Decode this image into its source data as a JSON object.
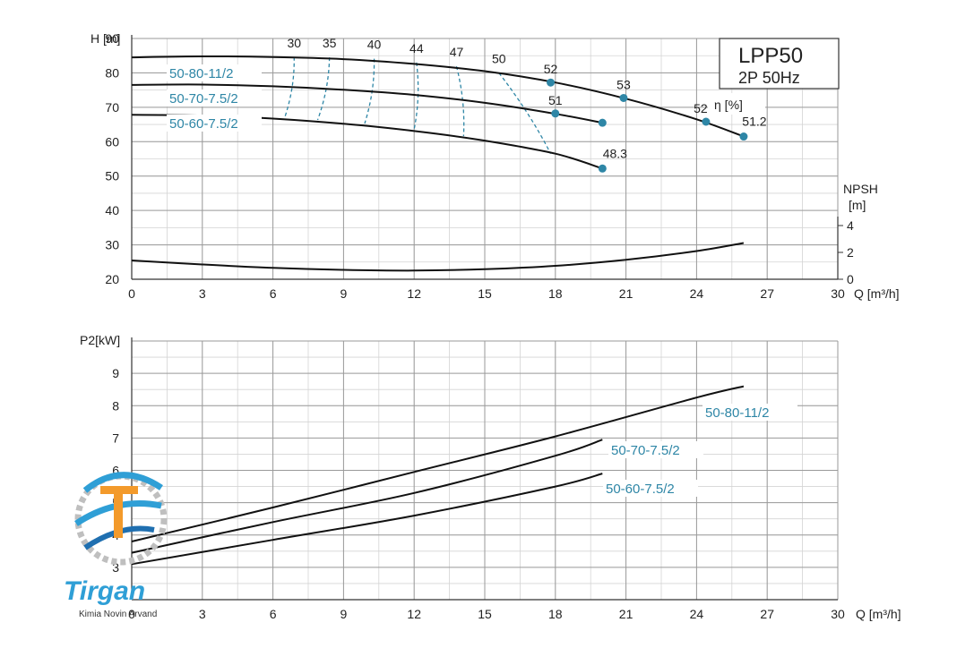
{
  "title_box": {
    "model": "LPP50",
    "sub": "2P  50Hz"
  },
  "logo": {
    "name": "Tirgan",
    "subtitle": "Kimia Novin Arvand"
  },
  "chart_data": [
    {
      "type": "line",
      "xlabel": "Q [m³/h]",
      "ylabel": "H [m]",
      "xlim": [
        0,
        30
      ],
      "ylim": [
        20,
        90
      ],
      "xticks": [
        "0",
        "3",
        "6",
        "9",
        "12",
        "15",
        "18",
        "21",
        "24",
        "27",
        "30"
      ],
      "yticks": [
        "20",
        "30",
        "40",
        "50",
        "60",
        "70",
        "80",
        "90"
      ],
      "grid": true,
      "series": [
        {
          "name": "50-80-11/2",
          "x": [
            0,
            3,
            6,
            9,
            12,
            15,
            18,
            21,
            24,
            26
          ],
          "y": [
            84.5,
            84.8,
            84.6,
            84,
            82.6,
            80.5,
            77.2,
            72.5,
            66.5,
            61.5
          ]
        },
        {
          "name": "50-70-7.5/2",
          "x": [
            0,
            3,
            6,
            9,
            12,
            15,
            18,
            20
          ],
          "y": [
            76.5,
            76.6,
            76.1,
            75.1,
            73.6,
            71.3,
            68.1,
            65.5
          ]
        },
        {
          "name": "50-60-7.5/2",
          "x": [
            0,
            3,
            6,
            9,
            12,
            15,
            18,
            20
          ],
          "y": [
            67.8,
            67.6,
            66.7,
            65.2,
            63.1,
            60.3,
            56.5,
            52.2
          ]
        }
      ],
      "npsh": {
        "label": "NPSH",
        "unit": "[m]",
        "ticks": [
          "0",
          "2",
          "4"
        ],
        "ylim": [
          0,
          4
        ],
        "x": [
          0,
          3,
          6,
          9,
          12,
          15,
          18,
          21,
          24,
          26
        ],
        "y": [
          1.4,
          1.1,
          0.85,
          0.7,
          0.65,
          0.75,
          1.0,
          1.45,
          2.1,
          2.7
        ]
      },
      "efficiency_label": "η [%]",
      "efficiency_isolines": [
        {
          "label": "30",
          "pts": [
            [
              6.9,
              84.6
            ],
            [
              6.5,
              67.0
            ]
          ]
        },
        {
          "label": "35",
          "pts": [
            [
              8.4,
              84.5
            ],
            [
              7.9,
              66.3
            ]
          ]
        },
        {
          "label": "40",
          "pts": [
            [
              10.3,
              84.1
            ],
            [
              9.9,
              65.3
            ]
          ]
        },
        {
          "label": "44",
          "pts": [
            [
              12.1,
              83.0
            ],
            [
              12.0,
              63.6
            ]
          ]
        },
        {
          "label": "47",
          "pts": [
            [
              13.8,
              81.9
            ],
            [
              14.1,
              61.6
            ]
          ]
        },
        {
          "label": "50",
          "pts": [
            [
              15.6,
              80.0
            ],
            [
              17.8,
              56.5
            ]
          ]
        }
      ],
      "points": [
        {
          "label": "52",
          "x": 17.8,
          "y": 77.2
        },
        {
          "label": "53",
          "x": 20.9,
          "y": 72.7
        },
        {
          "label": "52",
          "x": 24.4,
          "y": 65.8
        },
        {
          "label": "51.2",
          "x": 26.0,
          "y": 61.5
        },
        {
          "label": "51",
          "x": 18.0,
          "y": 68.2
        },
        {
          "label": "",
          "x": 20.0,
          "y": 65.5
        },
        {
          "label": "48.3",
          "x": 20.0,
          "y": 52.2
        }
      ]
    },
    {
      "type": "line",
      "xlabel": "Q [m³/h]",
      "ylabel": "P2[kW]",
      "xlim": [
        0,
        30
      ],
      "ylim": [
        2,
        10
      ],
      "xticks": [
        "0",
        "3",
        "6",
        "9",
        "12",
        "15",
        "18",
        "21",
        "24",
        "27",
        "30"
      ],
      "yticks": [
        "3",
        "4",
        "5",
        "6",
        "7",
        "8",
        "9"
      ],
      "grid": true,
      "series": [
        {
          "name": "50-80-11/2",
          "x": [
            0,
            6,
            12,
            18,
            24,
            26
          ],
          "y": [
            3.8,
            4.85,
            5.95,
            7.05,
            8.25,
            8.6
          ]
        },
        {
          "name": "50-70-7.5/2",
          "x": [
            0,
            6,
            12,
            18,
            20
          ],
          "y": [
            3.45,
            4.4,
            5.3,
            6.45,
            6.95
          ]
        },
        {
          "name": "50-60-7.5/2",
          "x": [
            0,
            6,
            12,
            18,
            20
          ],
          "y": [
            3.1,
            3.85,
            4.6,
            5.5,
            5.9
          ]
        }
      ]
    }
  ]
}
